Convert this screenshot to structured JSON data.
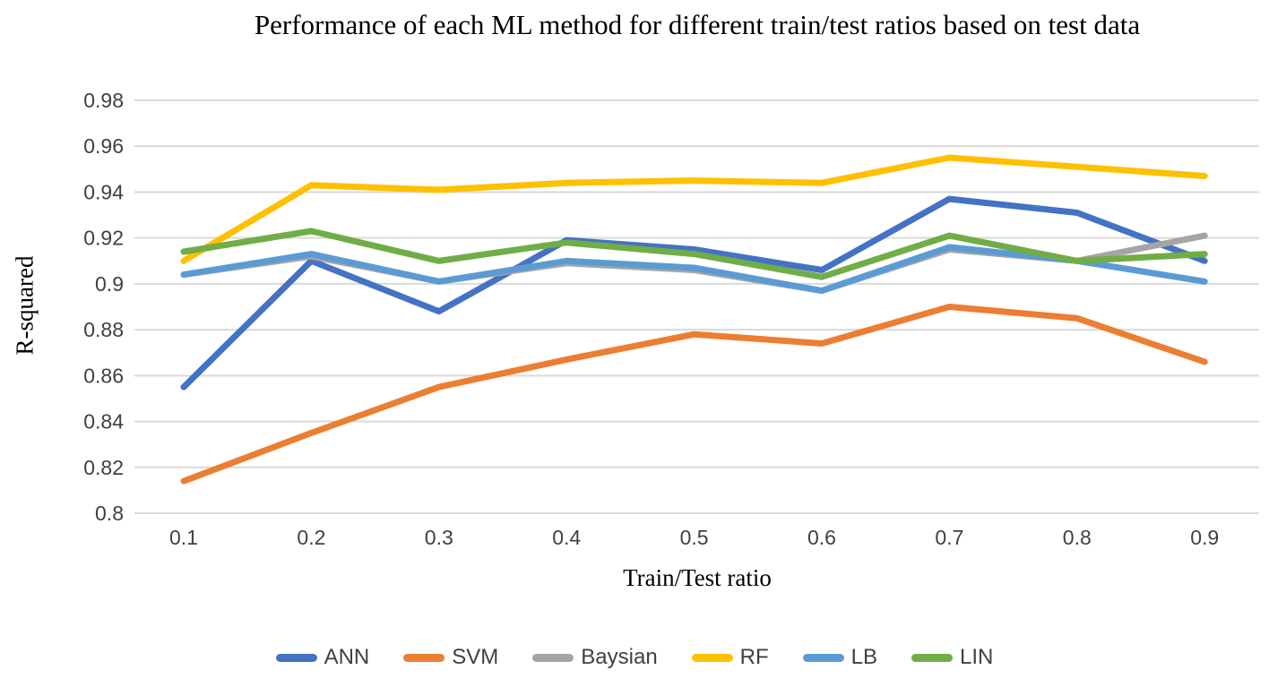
{
  "chart_data": {
    "type": "line",
    "title": "Performance of each ML  method for different train/test ratios based on test data",
    "xlabel": "Train/Test ratio",
    "ylabel": "R-squared",
    "x": [
      0.1,
      0.2,
      0.3,
      0.4,
      0.5,
      0.6,
      0.7,
      0.8,
      0.9
    ],
    "x_ticks": [
      "0.1",
      "0.2",
      "0.3",
      "0.4",
      "0.5",
      "0.6",
      "0.7",
      "0.8",
      "0.9"
    ],
    "y_ticks": [
      "0.98",
      "0.96",
      "0.94",
      "0.92",
      "0.9",
      "0.88",
      "0.86",
      "0.84",
      "0.82",
      "0.8"
    ],
    "ylim": [
      0.8,
      0.98
    ],
    "grid": "horizontal",
    "gridline_color": "#D9D9D9",
    "legend_position": "bottom",
    "series": [
      {
        "name": "ANN",
        "color": "#4472C4",
        "values": [
          0.855,
          0.91,
          0.888,
          0.919,
          0.915,
          0.906,
          0.937,
          0.931,
          0.91
        ]
      },
      {
        "name": "SVM",
        "color": "#ED7D31",
        "values": [
          0.814,
          0.835,
          0.855,
          0.867,
          0.878,
          0.874,
          0.89,
          0.885,
          0.866
        ]
      },
      {
        "name": "Baysian",
        "color": "#A5A5A5",
        "values": [
          0.904,
          0.912,
          0.901,
          0.909,
          0.906,
          0.897,
          0.915,
          0.91,
          0.921
        ]
      },
      {
        "name": "RF",
        "color": "#FFC000",
        "values": [
          0.91,
          0.943,
          0.941,
          0.944,
          0.945,
          0.944,
          0.955,
          0.951,
          0.947
        ]
      },
      {
        "name": "LB",
        "color": "#5B9BD5",
        "values": [
          0.904,
          0.913,
          0.901,
          0.91,
          0.907,
          0.897,
          0.916,
          0.91,
          0.901
        ]
      },
      {
        "name": "LIN",
        "color": "#70AD47",
        "values": [
          0.914,
          0.923,
          0.91,
          0.918,
          0.913,
          0.903,
          0.921,
          0.91,
          0.913
        ]
      }
    ]
  }
}
